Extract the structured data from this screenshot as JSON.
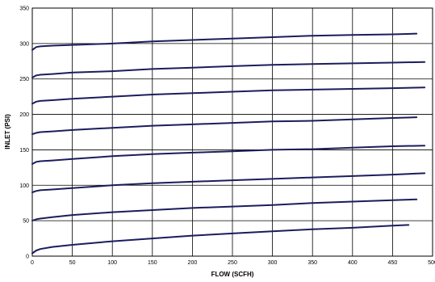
{
  "chart_data": {
    "type": "line",
    "title": "",
    "xlabel": "FLOW (SCFH)",
    "ylabel": "INLET (PSI)",
    "xlim": [
      0,
      500
    ],
    "ylim": [
      0,
      350
    ],
    "x_ticks": [
      "0",
      "50",
      "100",
      "150",
      "200",
      "250",
      "300",
      "350",
      "400",
      "450",
      "500"
    ],
    "y_ticks": [
      "0",
      "50",
      "100",
      "150",
      "200",
      "250",
      "300",
      "350"
    ],
    "grid": true,
    "legend": "none",
    "line_color": "#1c1c5e",
    "series": [
      {
        "x": [
          0,
          5,
          10,
          25,
          50,
          100,
          150,
          200,
          250,
          300,
          350,
          400,
          450,
          470
        ],
        "y": [
          4,
          8,
          10,
          13,
          16,
          21,
          25,
          29,
          32,
          35,
          38,
          40,
          43,
          44
        ]
      },
      {
        "x": [
          0,
          5,
          10,
          25,
          50,
          100,
          150,
          200,
          250,
          300,
          350,
          400,
          450,
          480
        ],
        "y": [
          50,
          52,
          53,
          55,
          58,
          62,
          65,
          68,
          70,
          72,
          75,
          77,
          79,
          80
        ]
      },
      {
        "x": [
          0,
          5,
          10,
          25,
          50,
          100,
          150,
          200,
          250,
          300,
          350,
          400,
          450,
          490
        ],
        "y": [
          90,
          92,
          93,
          94,
          96,
          100,
          103,
          105,
          107,
          109,
          111,
          113,
          115,
          117
        ]
      },
      {
        "x": [
          0,
          5,
          10,
          25,
          50,
          100,
          150,
          200,
          250,
          300,
          350,
          400,
          450,
          490
        ],
        "y": [
          130,
          133,
          134,
          135,
          137,
          141,
          144,
          146,
          148,
          150,
          151,
          153,
          155,
          156
        ]
      },
      {
        "x": [
          0,
          5,
          10,
          25,
          50,
          100,
          150,
          200,
          250,
          300,
          350,
          400,
          450,
          480
        ],
        "y": [
          172,
          174,
          175,
          176,
          178,
          181,
          184,
          186,
          188,
          190,
          191,
          193,
          195,
          196
        ]
      },
      {
        "x": [
          0,
          5,
          10,
          25,
          50,
          100,
          150,
          200,
          250,
          300,
          350,
          400,
          450,
          490
        ],
        "y": [
          215,
          218,
          219,
          220,
          222,
          225,
          228,
          230,
          232,
          234,
          235,
          236,
          237,
          238
        ]
      },
      {
        "x": [
          0,
          5,
          10,
          25,
          50,
          100,
          150,
          200,
          250,
          300,
          350,
          400,
          450,
          490
        ],
        "y": [
          252,
          255,
          256,
          257,
          259,
          261,
          264,
          266,
          268,
          270,
          271,
          272,
          273,
          274
        ]
      },
      {
        "x": [
          0,
          5,
          10,
          25,
          50,
          100,
          150,
          200,
          250,
          300,
          350,
          400,
          450,
          480
        ],
        "y": [
          291,
          295,
          296,
          297,
          298,
          300,
          303,
          305,
          307,
          309,
          311,
          312,
          313,
          314
        ]
      }
    ]
  }
}
